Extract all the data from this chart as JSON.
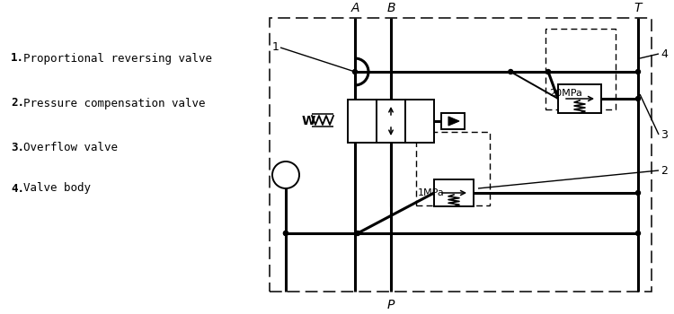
{
  "legend_items": [
    {
      "num": "1",
      "text": "Proportional reversing valve"
    },
    {
      "num": "2",
      "text": "Pressure compensation valve"
    },
    {
      "num": "3",
      "text": "Overflow valve"
    },
    {
      "num": "4",
      "text": "Valve body"
    }
  ],
  "bg_color": "#ffffff",
  "fig_width": 7.5,
  "fig_height": 3.5,
  "dpi": 100
}
